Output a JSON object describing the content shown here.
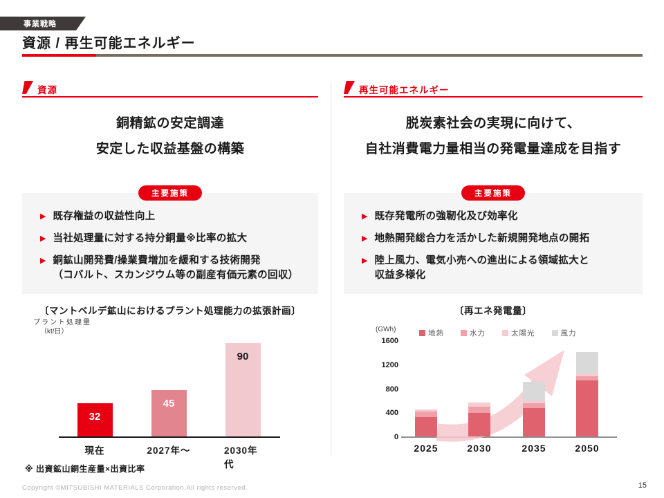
{
  "page": {
    "tag_label": "事業戦略",
    "title": "資源 / 再生可能エネルギー",
    "footnote": "※ 出資鉱山銅生産量×出資比率",
    "copyright": "Copyright ©MITSUBISHI MATERIALS Corporation.All rights reserved.",
    "page_number": "15"
  },
  "colors": {
    "accent_red": "#e60012",
    "rule_brown": "#7b6c60",
    "tag_bg": "#3e3a39",
    "box_bg": "#f5f5f6",
    "ink": "#1a1a1a",
    "arrow_pink": "#f6c8cf"
  },
  "left": {
    "section_label": "資源",
    "message_lines": [
      "銅精鉱の安定調達",
      "安定した収益基盤の構築"
    ],
    "measures_label": "主要施策",
    "bullets": [
      {
        "lines": [
          "既存権益の収益性向上"
        ]
      },
      {
        "lines": [
          "当社処理量に対する持分銅量※比率の拡大"
        ]
      },
      {
        "lines": [
          "銅鉱山開発費/操業費増加を緩和する技術開発",
          "（コバルト、スカンジウム等の副産有価元素の回収）"
        ]
      }
    ]
  },
  "right": {
    "section_label": "再生可能エネルギー",
    "message_lines": [
      "脱炭素社会の実現に向けて、",
      "自社消費電力量相当の発電量達成を目指す"
    ],
    "measures_label": "主要施策",
    "bullets": [
      {
        "lines": [
          "既存発電所の強靭化及び効率化"
        ]
      },
      {
        "lines": [
          "地熱開発総合力を活かした新規開発地点の開拓"
        ]
      },
      {
        "lines": [
          "陸上風力、電気小売への進出による領域拡大と",
          "収益多様化"
        ]
      }
    ]
  },
  "chart_data": [
    {
      "id": "plant-capacity-expansion",
      "type": "bar",
      "title": "〔マントベルデ鉱山におけるプラント処理能力の拡張計画〕",
      "ylabel": "プラント処理量",
      "ylabel_unit": "（kt/日）",
      "categories": [
        "現在",
        "2027年〜",
        "2030年代"
      ],
      "values": [
        32,
        45,
        90
      ],
      "bar_colors": [
        "#e60012",
        "#e2858e",
        "#f2c9ce"
      ],
      "label_colors": [
        "#ffffff",
        "#ffffff",
        "#1a1a1a"
      ],
      "ylim": [
        0,
        100
      ],
      "grid": false,
      "legend": "none"
    },
    {
      "id": "renewable-energy-generation",
      "type": "stacked-bar",
      "title": "〔再エネ発電量〕",
      "ylabel": "(GWh)",
      "categories": [
        "2025",
        "2030",
        "2035",
        "2050"
      ],
      "series": [
        {
          "name": "地熱",
          "color": "#e0626e",
          "values": [
            320,
            395,
            470,
            930
          ]
        },
        {
          "name": "水力",
          "color": "#efa0a8",
          "values": [
            90,
            100,
            80,
            70
          ]
        },
        {
          "name": "太陽光",
          "color": "#f6ccd1",
          "values": [
            40,
            65,
            40,
            50
          ]
        },
        {
          "name": "風力",
          "color": "#d9d9d9",
          "values": [
            0,
            0,
            320,
            350
          ]
        }
      ],
      "totals": [
        450,
        560,
        910,
        1400
      ],
      "yticks": [
        0,
        400,
        800,
        1200,
        1600
      ],
      "ylim": [
        0,
        1600
      ],
      "grid": false,
      "legend": "top",
      "annotation": "upward-trend-arrow"
    }
  ]
}
